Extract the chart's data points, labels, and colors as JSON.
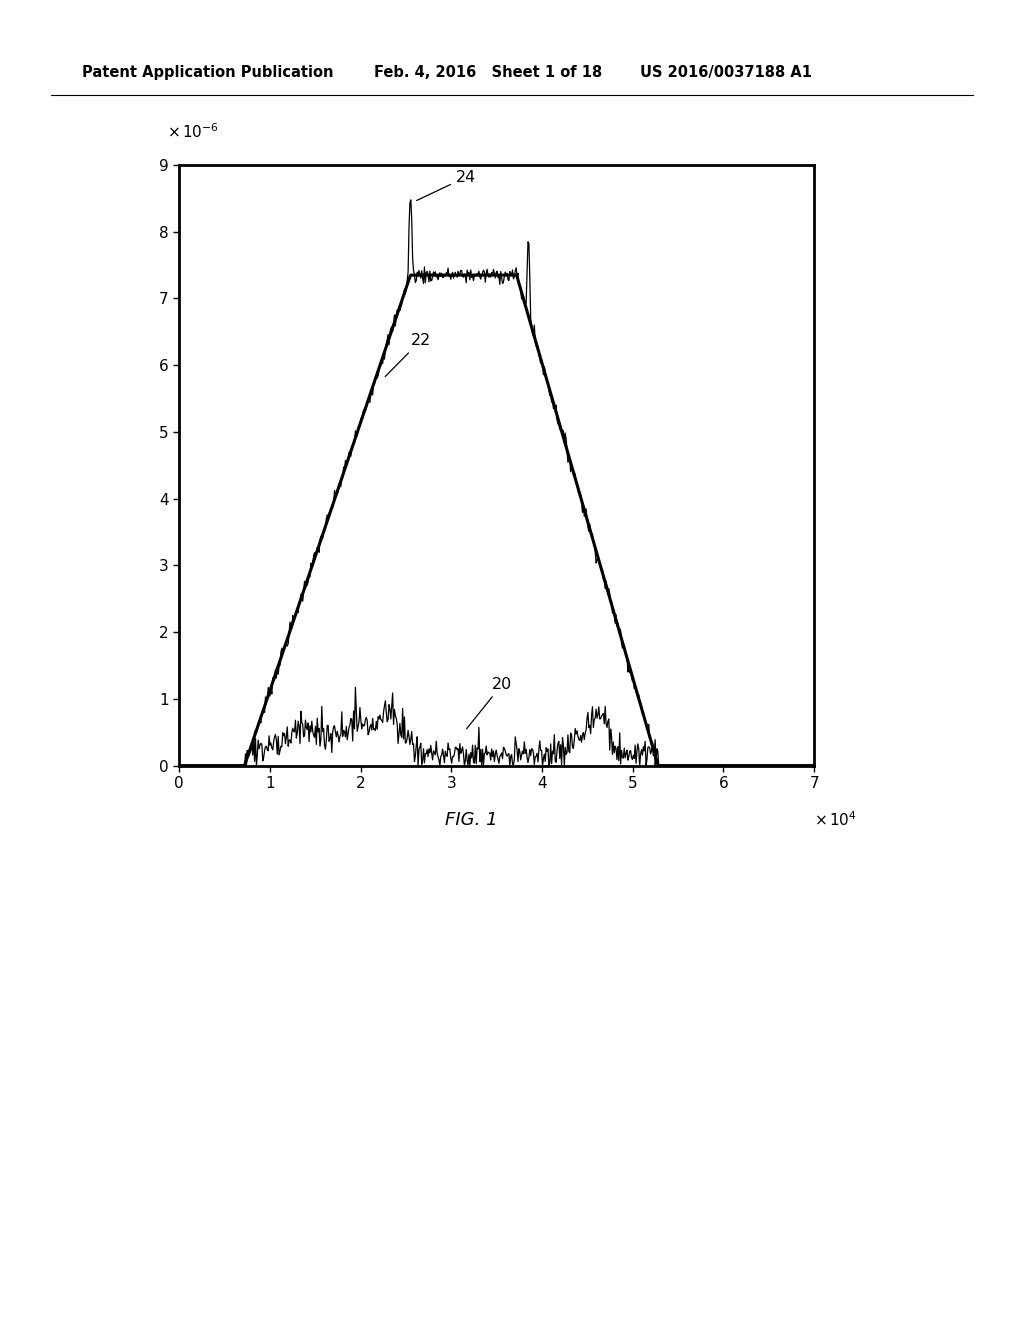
{
  "title_line1": "Patent Application Publication",
  "title_line2": "Feb. 4, 2016   Sheet 1 of 18",
  "title_line3": "US 2016/0037188 A1",
  "fig_label": "FIG. 1",
  "xlim": [
    0,
    7
  ],
  "ylim": [
    0,
    9
  ],
  "xticks": [
    0,
    1,
    2,
    3,
    4,
    5,
    6,
    7
  ],
  "yticks": [
    0,
    1,
    2,
    3,
    4,
    5,
    6,
    7,
    8,
    9
  ],
  "background_color": "#ffffff",
  "line_color": "#000000",
  "annotation_20": "20",
  "annotation_22": "22",
  "annotation_24": "24",
  "rise_start": 0.72,
  "rise_end": 2.55,
  "flat_val": 7.35,
  "fall_start": 3.72,
  "fall_end": 5.28,
  "N_points": 700
}
